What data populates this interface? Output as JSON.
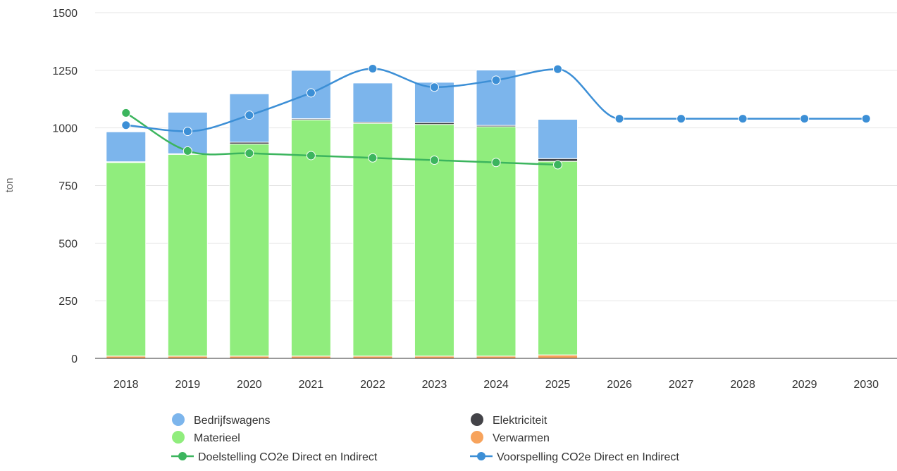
{
  "chart_data": {
    "type": "bar",
    "stacked": true,
    "title": "",
    "xlabel": "",
    "ylabel": "ton",
    "ylim": [
      0,
      1500
    ],
    "yticks": [
      0,
      250,
      500,
      750,
      1000,
      1250,
      1500
    ],
    "grid": true,
    "legend_position": "bottom",
    "categories": [
      "2018",
      "2019",
      "2020",
      "2021",
      "2022",
      "2023",
      "2024",
      "2025",
      "2026",
      "2027",
      "2028",
      "2029",
      "2030"
    ],
    "series": [
      {
        "name": "Verwarmen",
        "type": "bar",
        "color": "#f7a35c",
        "values": [
          10,
          10,
          10,
          10,
          10,
          10,
          10,
          15,
          null,
          null,
          null,
          null,
          null
        ]
      },
      {
        "name": "Materieel",
        "type": "bar",
        "color": "#90ed7d",
        "values": [
          840,
          875,
          920,
          1025,
          1010,
          1005,
          995,
          840,
          null,
          null,
          null,
          null,
          null
        ]
      },
      {
        "name": "Elektriciteit",
        "type": "bar",
        "color": "#434348",
        "values": [
          3,
          3,
          8,
          5,
          5,
          8,
          6,
          12,
          null,
          null,
          null,
          null,
          null
        ]
      },
      {
        "name": "Bedrijfswagens",
        "type": "bar",
        "color": "#7cb5ec",
        "values": [
          130,
          180,
          210,
          210,
          170,
          175,
          240,
          170,
          null,
          null,
          null,
          null,
          null
        ]
      },
      {
        "name": "Doelstelling CO2e Direct en Indirect",
        "type": "line",
        "color": "#3cb55e",
        "values": [
          1065,
          900,
          890,
          880,
          870,
          860,
          850,
          840,
          null,
          null,
          null,
          null,
          null
        ]
      },
      {
        "name": "Voorspelling CO2e Direct en Indirect",
        "type": "line",
        "color": "#3c8fd6",
        "values": [
          1012,
          985,
          1055,
          1152,
          1257,
          1177,
          1207,
          1255,
          1040,
          1040,
          1040,
          1040,
          1040
        ]
      }
    ],
    "legend": [
      {
        "series": "Bedrijfswagens",
        "symbol": "circle"
      },
      {
        "series": "Elektriciteit",
        "symbol": "circle"
      },
      {
        "series": "Materieel",
        "symbol": "circle"
      },
      {
        "series": "Verwarmen",
        "symbol": "circle"
      },
      {
        "series": "Doelstelling CO2e Direct en Indirect",
        "symbol": "line-marker"
      },
      {
        "series": "Voorspelling CO2e Direct en Indirect",
        "symbol": "line-marker"
      }
    ]
  }
}
